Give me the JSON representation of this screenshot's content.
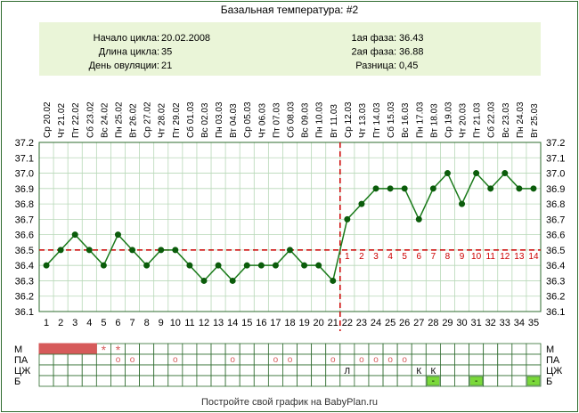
{
  "title": "Базальная температура: #2",
  "summary": {
    "left": [
      {
        "label": "Начало цикла:",
        "value": "20.02.2008"
      },
      {
        "label": "Длина цикла:",
        "value": "35"
      },
      {
        "label": "День овуляции:",
        "value": "21"
      }
    ],
    "right": [
      {
        "label": "1ая фаза:",
        "value": "36.43"
      },
      {
        "label": "2ая фаза:",
        "value": "36.88"
      },
      {
        "label": "Разница:",
        "value": "0,45"
      }
    ]
  },
  "footer": "Постройте свой график на BabyPlan.ru",
  "colors": {
    "line": "#1a7a1a",
    "marker": "#0b5c0b",
    "coverline": "#cc0000",
    "summary_bg": "#eaf5d8",
    "grid": "#b8d8b8",
    "border": "#2e6b2e",
    "mens": "#d65a5a",
    "green_cell": "#7ad83a"
  },
  "chart_data": {
    "type": "line",
    "days": [
      1,
      2,
      3,
      4,
      5,
      6,
      7,
      8,
      9,
      10,
      11,
      12,
      13,
      14,
      15,
      16,
      17,
      18,
      19,
      20,
      21,
      22,
      23,
      24,
      25,
      26,
      27,
      28,
      29,
      30,
      31,
      32,
      33,
      34,
      35
    ],
    "dates": [
      "Ср 20.02",
      "Чт 21.02",
      "Пт 22.02",
      "Сб 23.02",
      "Вс 24.02",
      "Пн 25.02",
      "Вт 26.02",
      "Ср 27.02",
      "Чт 28.02",
      "Пт 29.02",
      "Сб 01.03",
      "Вс 02.03",
      "Пн 03.03",
      "Вт 04.03",
      "Ср 05.03",
      "Чт 06.03",
      "Пт 07.03",
      "Сб 08.03",
      "Вс 09.03",
      "Пн 10.03",
      "Вт 11.03",
      "Ср 12.03",
      "Чт 13.03",
      "Пт 14.03",
      "Сб 15.03",
      "Вс 16.03",
      "Пн 17.03",
      "Вт 18.03",
      "Ср 19.03",
      "Чт 20.03",
      "Пт 21.03",
      "Сб 22.03",
      "Вс 23.03",
      "Пн 24.03",
      "Вт 25.03"
    ],
    "temperatures": [
      36.4,
      36.5,
      36.6,
      36.5,
      36.4,
      36.6,
      36.5,
      36.4,
      36.5,
      36.5,
      36.4,
      36.3,
      36.4,
      36.3,
      36.4,
      36.4,
      36.4,
      36.5,
      36.4,
      36.4,
      36.3,
      36.7,
      36.8,
      36.9,
      36.9,
      36.9,
      36.7,
      36.9,
      37.0,
      36.8,
      37.0,
      36.9,
      37.0,
      36.9,
      36.9
    ],
    "ylim": [
      36.1,
      37.2
    ],
    "yticks": [
      "36.1",
      "36.2",
      "36.3",
      "36.4",
      "36.5",
      "36.6",
      "36.7",
      "36.8",
      "36.9",
      "37.0",
      "37.1",
      "37.2"
    ],
    "coverline": 36.5,
    "ovulation_day": 21,
    "luteal_day_labels": [
      "1",
      "2",
      "3",
      "4",
      "5",
      "6",
      "7",
      "8",
      "9",
      "10",
      "11",
      "12",
      "13",
      "14"
    ],
    "grid": true
  },
  "bottom_rows": [
    {
      "label": "М",
      "cells": [
        {
          "day": 1,
          "mark": "fill"
        },
        {
          "day": 2,
          "mark": "fill"
        },
        {
          "day": 3,
          "mark": "fill"
        },
        {
          "day": 4,
          "mark": "fill"
        },
        {
          "day": 5,
          "mark": "star",
          "text": "*"
        },
        {
          "day": 6,
          "mark": "star",
          "text": "*"
        }
      ]
    },
    {
      "label": "ПА",
      "cells": [
        {
          "day": 6,
          "mark": "circle",
          "text": "o"
        },
        {
          "day": 7,
          "mark": "circle",
          "text": "o"
        },
        {
          "day": 10,
          "mark": "circle",
          "text": "o"
        },
        {
          "day": 14,
          "mark": "circle",
          "text": "o"
        },
        {
          "day": 17,
          "mark": "circle",
          "text": "o"
        },
        {
          "day": 18,
          "mark": "circle",
          "text": "o"
        },
        {
          "day": 21,
          "mark": "circle",
          "text": "o"
        },
        {
          "day": 23,
          "mark": "circle",
          "text": "o"
        },
        {
          "day": 24,
          "mark": "circle",
          "text": "o"
        },
        {
          "day": 25,
          "mark": "circle",
          "text": "o"
        },
        {
          "day": 26,
          "mark": "circle",
          "text": "o"
        }
      ]
    },
    {
      "label": "ЦЖ",
      "cells": [
        {
          "day": 22,
          "mark": "text",
          "text": "Л"
        },
        {
          "day": 27,
          "mark": "text",
          "text": "К"
        },
        {
          "day": 28,
          "mark": "text",
          "text": "К"
        }
      ]
    },
    {
      "label": "Б",
      "cells": [
        {
          "day": 28,
          "mark": "green",
          "text": "-"
        },
        {
          "day": 31,
          "mark": "green",
          "text": "-"
        },
        {
          "day": 35,
          "mark": "green",
          "text": "-"
        }
      ]
    }
  ]
}
